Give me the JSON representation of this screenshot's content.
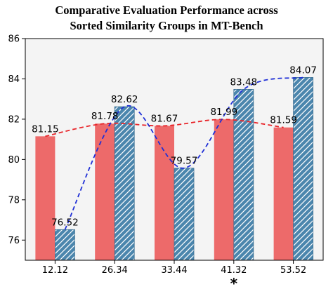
{
  "chart_data": {
    "type": "bar",
    "title_line1": "Comparative Evaluation Performance across",
    "title_line2": "Sorted Similarity Groups in MT-Bench",
    "categories": [
      "12.12",
      "26.34",
      "33.44",
      "41.32",
      "53.52"
    ],
    "series": [
      {
        "values": [
          81.15,
          81.78,
          81.67,
          81.99,
          81.59
        ],
        "color": "#ed6a6a",
        "hatch": false,
        "trend_color": "#e8252a",
        "trend_style": "dashed"
      },
      {
        "values": [
          76.52,
          82.62,
          79.57,
          83.48,
          84.07
        ],
        "color": "#4b86ad",
        "hatch": true,
        "trend_color": "#1f2fd6",
        "trend_style": "dashed"
      }
    ],
    "value_labels": [
      [
        "81.15",
        "81.78",
        "81.67",
        "81.99",
        "81.59"
      ],
      [
        "76.52",
        "82.62",
        "79.57",
        "83.48",
        "84.07"
      ]
    ],
    "ylim": [
      75,
      86
    ],
    "yticks": [
      "76",
      "78",
      "80",
      "82",
      "84",
      "86"
    ],
    "grid": false,
    "background": "#f4f4f4",
    "annotation": "*",
    "annotation_category_index": 3
  }
}
